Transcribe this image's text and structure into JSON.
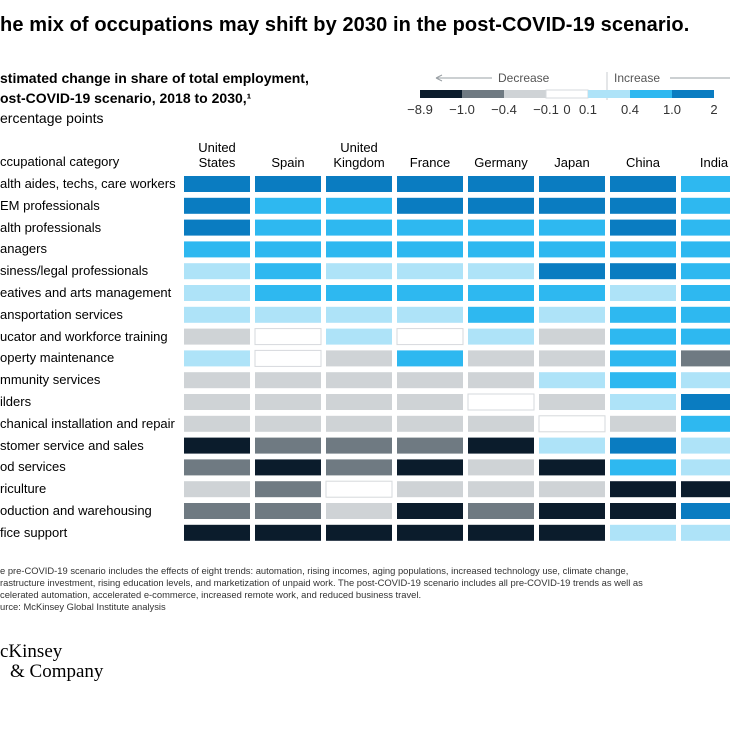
{
  "title": "he mix of occupations may shift by 2030 in the post-COVID-19 scenario.",
  "subtitle_line1": "stimated change in share of total employment,",
  "subtitle_line2": "ost-COVID-19 scenario, 2018 to 2030,¹",
  "subtitle_line3": "ercentage points",
  "legend": {
    "decrease_label": "Decrease",
    "increase_label": "Increase",
    "tick_labels": [
      "−8.9",
      "−1.0",
      "−0.4",
      "−0.1",
      "0",
      "0.1",
      "0.4",
      "1.0",
      "2"
    ],
    "colors": [
      "#0b1c2c",
      "#6f7a82",
      "#cfd3d6",
      "#ffffff",
      "#aee3f8",
      "#2eb8f0",
      "#0a7cc1"
    ]
  },
  "footnote_lines": [
    "e pre-COVID-19 scenario includes the effects of eight trends: automation, rising incomes, aging populations, increased technology use, climate change,",
    "rastructure investment, rising education levels, and marketization of unpaid work. The post-COVID-19 scenario includes all pre-COVID-19 trends as well as",
    "celerated automation, accelerated e-commerce, increased remote work, and reduced business travel.",
    "urce: McKinsey Global Institute analysis"
  ],
  "logo_line1": "cKinsey",
  "logo_line2": "& Company",
  "chart_data": {
    "type": "heatmap",
    "row_header": "ccupational category",
    "columns": [
      "United\nStates",
      "Spain",
      "United\nKingdom",
      "France",
      "Germany",
      "Japan",
      "China",
      "India"
    ],
    "rows": [
      "alth aides, techs, care workers",
      "EM professionals",
      "alth professionals",
      "anagers",
      "siness/legal professionals",
      "eatives and arts management",
      "ansportation services",
      "ucator and workforce training",
      "operty maintenance",
      "mmunity services",
      "ilders",
      "chanical installation and repair",
      "stomer service and sales",
      "od services",
      "riculture",
      "oduction and warehousing",
      "fice support"
    ],
    "bins": [
      "−8.9 to −1.0",
      "−1.0 to −0.4",
      "−0.4 to −0.1",
      "−0.1 to 0.1",
      "0.1 to 0.4",
      "0.4 to 1.0",
      "1.0 to 2"
    ],
    "cells": [
      [
        6,
        6,
        6,
        6,
        6,
        6,
        6,
        5
      ],
      [
        6,
        5,
        5,
        6,
        6,
        6,
        6,
        5
      ],
      [
        6,
        5,
        5,
        5,
        5,
        5,
        6,
        5
      ],
      [
        5,
        5,
        5,
        5,
        5,
        5,
        5,
        5
      ],
      [
        4,
        5,
        4,
        4,
        4,
        6,
        6,
        5
      ],
      [
        4,
        5,
        5,
        5,
        5,
        5,
        4,
        5
      ],
      [
        4,
        4,
        4,
        4,
        5,
        4,
        5,
        5
      ],
      [
        2,
        3,
        4,
        3,
        4,
        2,
        5,
        5
      ],
      [
        4,
        3,
        2,
        5,
        2,
        2,
        5,
        1
      ],
      [
        2,
        2,
        2,
        2,
        2,
        4,
        5,
        4
      ],
      [
        2,
        2,
        2,
        2,
        3,
        2,
        4,
        6
      ],
      [
        2,
        2,
        2,
        2,
        2,
        3,
        2,
        5
      ],
      [
        0,
        1,
        1,
        1,
        0,
        4,
        6,
        4
      ],
      [
        1,
        0,
        1,
        0,
        2,
        0,
        5,
        4
      ],
      [
        2,
        1,
        3,
        2,
        2,
        2,
        0,
        0
      ],
      [
        1,
        1,
        2,
        0,
        1,
        0,
        0,
        6
      ],
      [
        0,
        0,
        0,
        0,
        0,
        0,
        4,
        4
      ]
    ]
  }
}
